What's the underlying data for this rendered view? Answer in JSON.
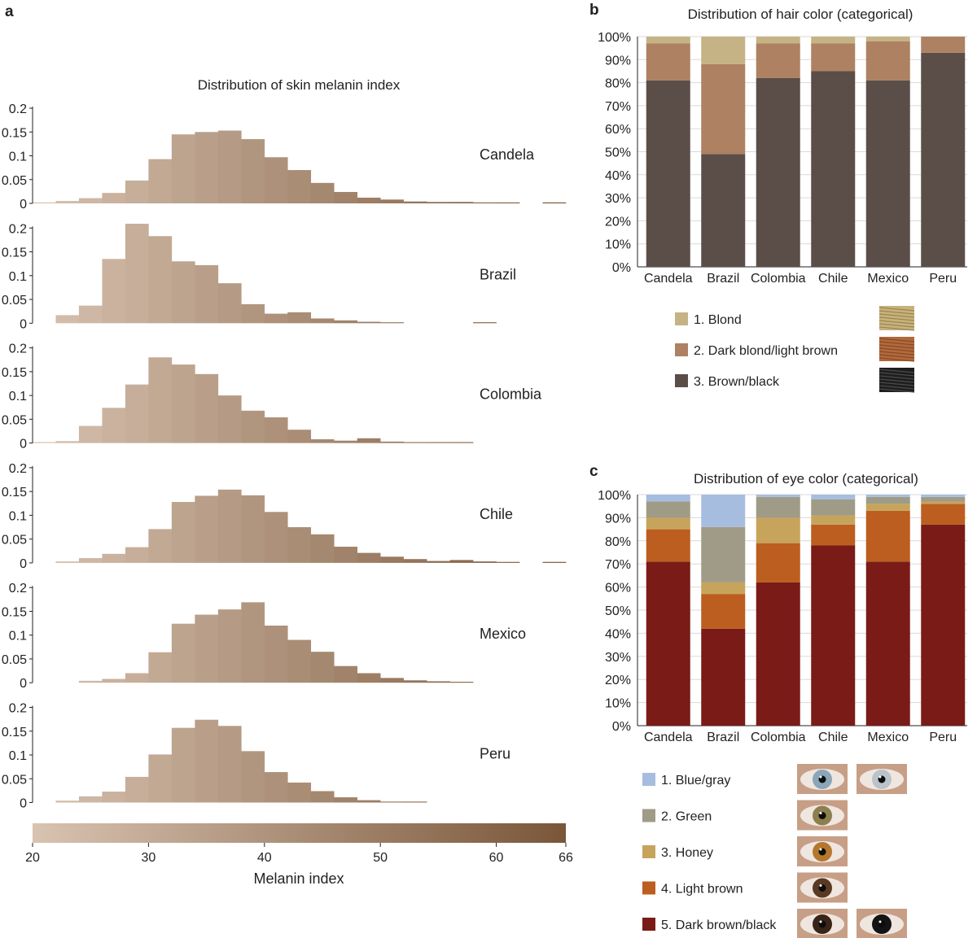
{
  "panels": {
    "a": {
      "letter": "a"
    },
    "b": {
      "letter": "b"
    },
    "c": {
      "letter": "c"
    }
  },
  "colors": {
    "melanin_light": "#d8c3b1",
    "melanin_dark": "#7a5639",
    "hair": [
      "#c6b385",
      "#ad8162",
      "#5b4e48"
    ],
    "eye": [
      "#a7bde0",
      "#9f9b86",
      "#c7a45b",
      "#bb5e1f",
      "#7a1b17"
    ]
  },
  "chart_data": [
    {
      "type": "bar",
      "panel": "a",
      "title": "Distribution of skin melanin index",
      "xlabel": "Melanin index",
      "ylabel": "",
      "bin_width": 2,
      "bin_starts": [
        20,
        22,
        24,
        26,
        28,
        30,
        32,
        34,
        36,
        38,
        40,
        42,
        44,
        46,
        48,
        50,
        52,
        54,
        56,
        58,
        60,
        62,
        64
      ],
      "xlim": [
        20,
        66
      ],
      "ylim": [
        0,
        0.2
      ],
      "yticks": [
        "0.2",
        "0.15",
        "0.1",
        "0.05",
        "0"
      ],
      "colorbar_ticks": [
        "20",
        "30",
        "40",
        "50",
        "60",
        "66"
      ],
      "series": [
        {
          "name": "Candela",
          "values": [
            0.001,
            0.005,
            0.011,
            0.022,
            0.048,
            0.093,
            0.145,
            0.15,
            0.153,
            0.135,
            0.097,
            0.07,
            0.043,
            0.024,
            0.012,
            0.008,
            0.004,
            0.003,
            0.003,
            0.002,
            0.001,
            0.0,
            0.001
          ]
        },
        {
          "name": "Brazil",
          "values": [
            0.0,
            0.017,
            0.037,
            0.135,
            0.209,
            0.183,
            0.13,
            0.122,
            0.084,
            0.04,
            0.02,
            0.023,
            0.01,
            0.006,
            0.003,
            0.002,
            0.0,
            0.0,
            0.0,
            0.001,
            0.0,
            0.0,
            0.0
          ]
        },
        {
          "name": "Colombia",
          "values": [
            0.001,
            0.004,
            0.036,
            0.074,
            0.123,
            0.18,
            0.165,
            0.145,
            0.1,
            0.068,
            0.054,
            0.028,
            0.008,
            0.005,
            0.01,
            0.003,
            0.002,
            0.002,
            0.001,
            0.0,
            0.0,
            0.0,
            0.0
          ]
        },
        {
          "name": "Chile",
          "values": [
            0.0,
            0.003,
            0.01,
            0.019,
            0.033,
            0.071,
            0.128,
            0.141,
            0.154,
            0.142,
            0.107,
            0.075,
            0.06,
            0.034,
            0.021,
            0.013,
            0.008,
            0.004,
            0.006,
            0.003,
            0.001,
            0.0,
            0.001
          ]
        },
        {
          "name": "Mexico",
          "values": [
            0.0,
            0.0,
            0.004,
            0.008,
            0.02,
            0.064,
            0.124,
            0.143,
            0.154,
            0.169,
            0.12,
            0.09,
            0.065,
            0.035,
            0.02,
            0.01,
            0.005,
            0.003,
            0.002,
            0.0,
            0.0,
            0.0,
            0.0
          ]
        },
        {
          "name": "Peru",
          "values": [
            0.0,
            0.004,
            0.013,
            0.023,
            0.054,
            0.101,
            0.157,
            0.174,
            0.161,
            0.108,
            0.064,
            0.042,
            0.024,
            0.011,
            0.005,
            0.002,
            0.001,
            0.0,
            0.0,
            0.0,
            0.0,
            0.0,
            0.0
          ]
        }
      ]
    },
    {
      "type": "bar",
      "panel": "b",
      "stacked": true,
      "title": "Distribution of hair color (categorical)",
      "categories": [
        "Candela",
        "Brazil",
        "Colombia",
        "Chile",
        "Mexico",
        "Peru"
      ],
      "yticks": [
        "100%",
        "90%",
        "80%",
        "70%",
        "60%",
        "50%",
        "40%",
        "30%",
        "20%",
        "10%",
        "0%"
      ],
      "ylim": [
        0,
        100
      ],
      "series": [
        {
          "name": "3. Brown/black",
          "values": [
            81,
            49,
            82,
            85,
            81,
            93
          ]
        },
        {
          "name": "2. Dark blond/light brown",
          "values": [
            16,
            39,
            15,
            12,
            17,
            7
          ]
        },
        {
          "name": "1. Blond",
          "values": [
            3,
            12,
            3,
            3,
            2,
            0
          ]
        }
      ],
      "legend": [
        "1. Blond",
        "2. Dark blond/light brown",
        "3. Brown/black"
      ]
    },
    {
      "type": "bar",
      "panel": "c",
      "stacked": true,
      "title": "Distribution of eye color (categorical)",
      "categories": [
        "Candela",
        "Brazil",
        "Colombia",
        "Chile",
        "Mexico",
        "Peru"
      ],
      "yticks": [
        "100%",
        "90%",
        "80%",
        "70%",
        "60%",
        "50%",
        "40%",
        "30%",
        "20%",
        "10%",
        "0%"
      ],
      "ylim": [
        0,
        100
      ],
      "series": [
        {
          "name": "5. Dark brown/black",
          "values": [
            71,
            42,
            62,
            78,
            71,
            87
          ]
        },
        {
          "name": "4. Light brown",
          "values": [
            14,
            15,
            17,
            9,
            22,
            9
          ]
        },
        {
          "name": "3. Honey",
          "values": [
            5,
            5,
            11,
            4,
            3,
            1
          ]
        },
        {
          "name": "2. Green",
          "values": [
            7,
            24,
            9,
            7,
            3,
            2
          ]
        },
        {
          "name": "1. Blue/gray",
          "values": [
            3,
            14,
            1,
            2,
            1,
            1
          ]
        }
      ],
      "legend": [
        "1. Blue/gray",
        "2. Green",
        "3. Honey",
        "4. Light brown",
        "5. Dark brown/black"
      ]
    }
  ]
}
